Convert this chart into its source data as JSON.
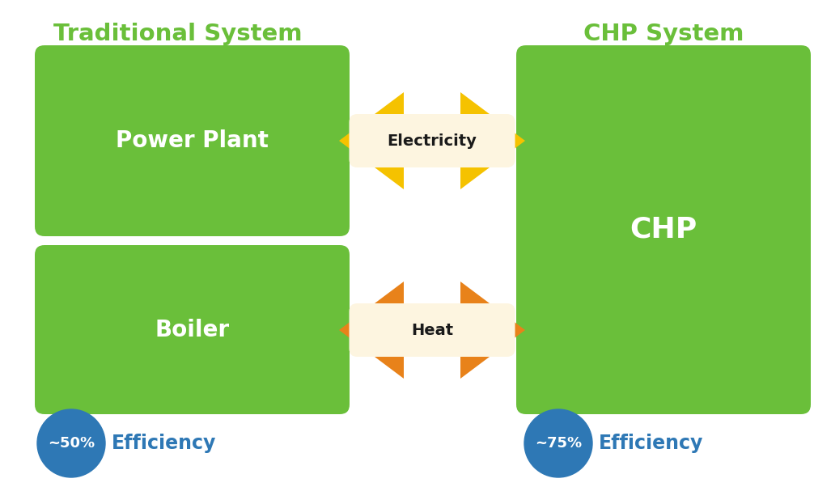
{
  "bg_color": "#ffffff",
  "green_color": "#6abf3a",
  "blue_color": "#2e78b5",
  "yellow_color": "#f5c200",
  "orange_color": "#e8821a",
  "white_color": "#ffffff",
  "cream_color": "#fdf5e0",
  "title_left": "Traditional System",
  "title_right": "CHP System",
  "label_power_plant": "Power Plant",
  "label_boiler": "Boiler",
  "label_chp": "CHP",
  "label_electricity": "Electricity",
  "label_heat": "Heat",
  "label_eff_left": "~50%",
  "label_eff_right": "~75%",
  "label_efficiency": "Efficiency",
  "title_color": "#6abf3a",
  "box_text_color": "#ffffff",
  "arrow_label_color": "#1a1a1a"
}
